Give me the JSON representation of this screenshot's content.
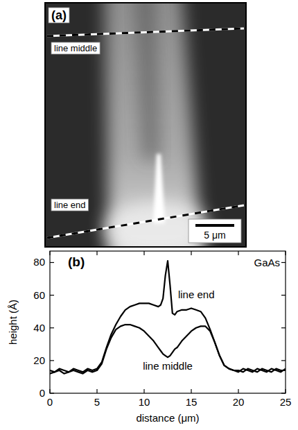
{
  "image_panel": {
    "label": "(a)",
    "lines": [
      {
        "label": "line middle"
      },
      {
        "label": "line end"
      }
    ],
    "scale_bar": "5 μm"
  },
  "chart_data": {
    "type": "line",
    "panel_label": "(b)",
    "annotation": "GaAs",
    "x_label": "distance (μm)",
    "y_label": "height (Å)",
    "xlim": [
      0,
      25
    ],
    "xticks": [
      0,
      5,
      10,
      15,
      20,
      25
    ],
    "ylim": [
      0,
      87
    ],
    "yticks": [
      0,
      20,
      40,
      60,
      80
    ],
    "grid": false,
    "x": [
      0,
      0.5,
      1,
      1.5,
      2,
      2.5,
      3,
      3.5,
      4,
      4.5,
      5,
      5.5,
      6,
      6.5,
      7,
      7.5,
      8,
      8.5,
      9,
      9.5,
      10,
      10.5,
      11,
      11.5,
      11.75,
      12,
      12.25,
      12.5,
      12.75,
      13,
      13.25,
      13.5,
      14,
      14.5,
      15,
      15.5,
      16,
      16.5,
      17,
      17.5,
      18,
      18.5,
      19,
      19.5,
      20,
      20.5,
      21,
      21.5,
      22,
      22.5,
      23,
      23.5,
      24,
      24.5,
      25
    ],
    "series": [
      {
        "name": "line end",
        "color": "#000000",
        "line_style": "solid",
        "values": [
          14,
          13,
          15,
          14,
          13,
          15,
          14,
          13,
          15,
          14,
          15,
          19,
          28,
          36,
          42,
          47,
          51,
          53,
          54,
          55,
          55,
          55,
          54,
          53,
          54,
          58,
          72,
          81,
          66,
          49,
          48,
          50,
          51,
          51,
          52,
          51,
          50,
          46,
          39,
          31,
          23,
          17,
          15,
          14,
          13,
          15,
          14,
          13,
          15,
          14,
          13,
          15,
          14,
          13,
          15
        ]
      },
      {
        "name": "line middle",
        "color": "#000000",
        "line_style": "solid",
        "values": [
          12,
          13,
          14,
          12,
          13,
          14,
          13,
          12,
          14,
          13,
          14,
          18,
          27,
          34,
          39,
          41,
          42,
          42,
          41,
          40,
          38,
          35,
          32,
          28,
          26,
          24,
          23,
          22,
          23,
          25,
          27,
          28,
          32,
          35,
          38,
          40,
          41,
          41,
          38,
          31,
          23,
          17,
          15,
          14,
          14,
          13,
          15,
          14,
          13,
          15,
          14,
          13,
          15,
          14,
          14
        ]
      }
    ]
  }
}
